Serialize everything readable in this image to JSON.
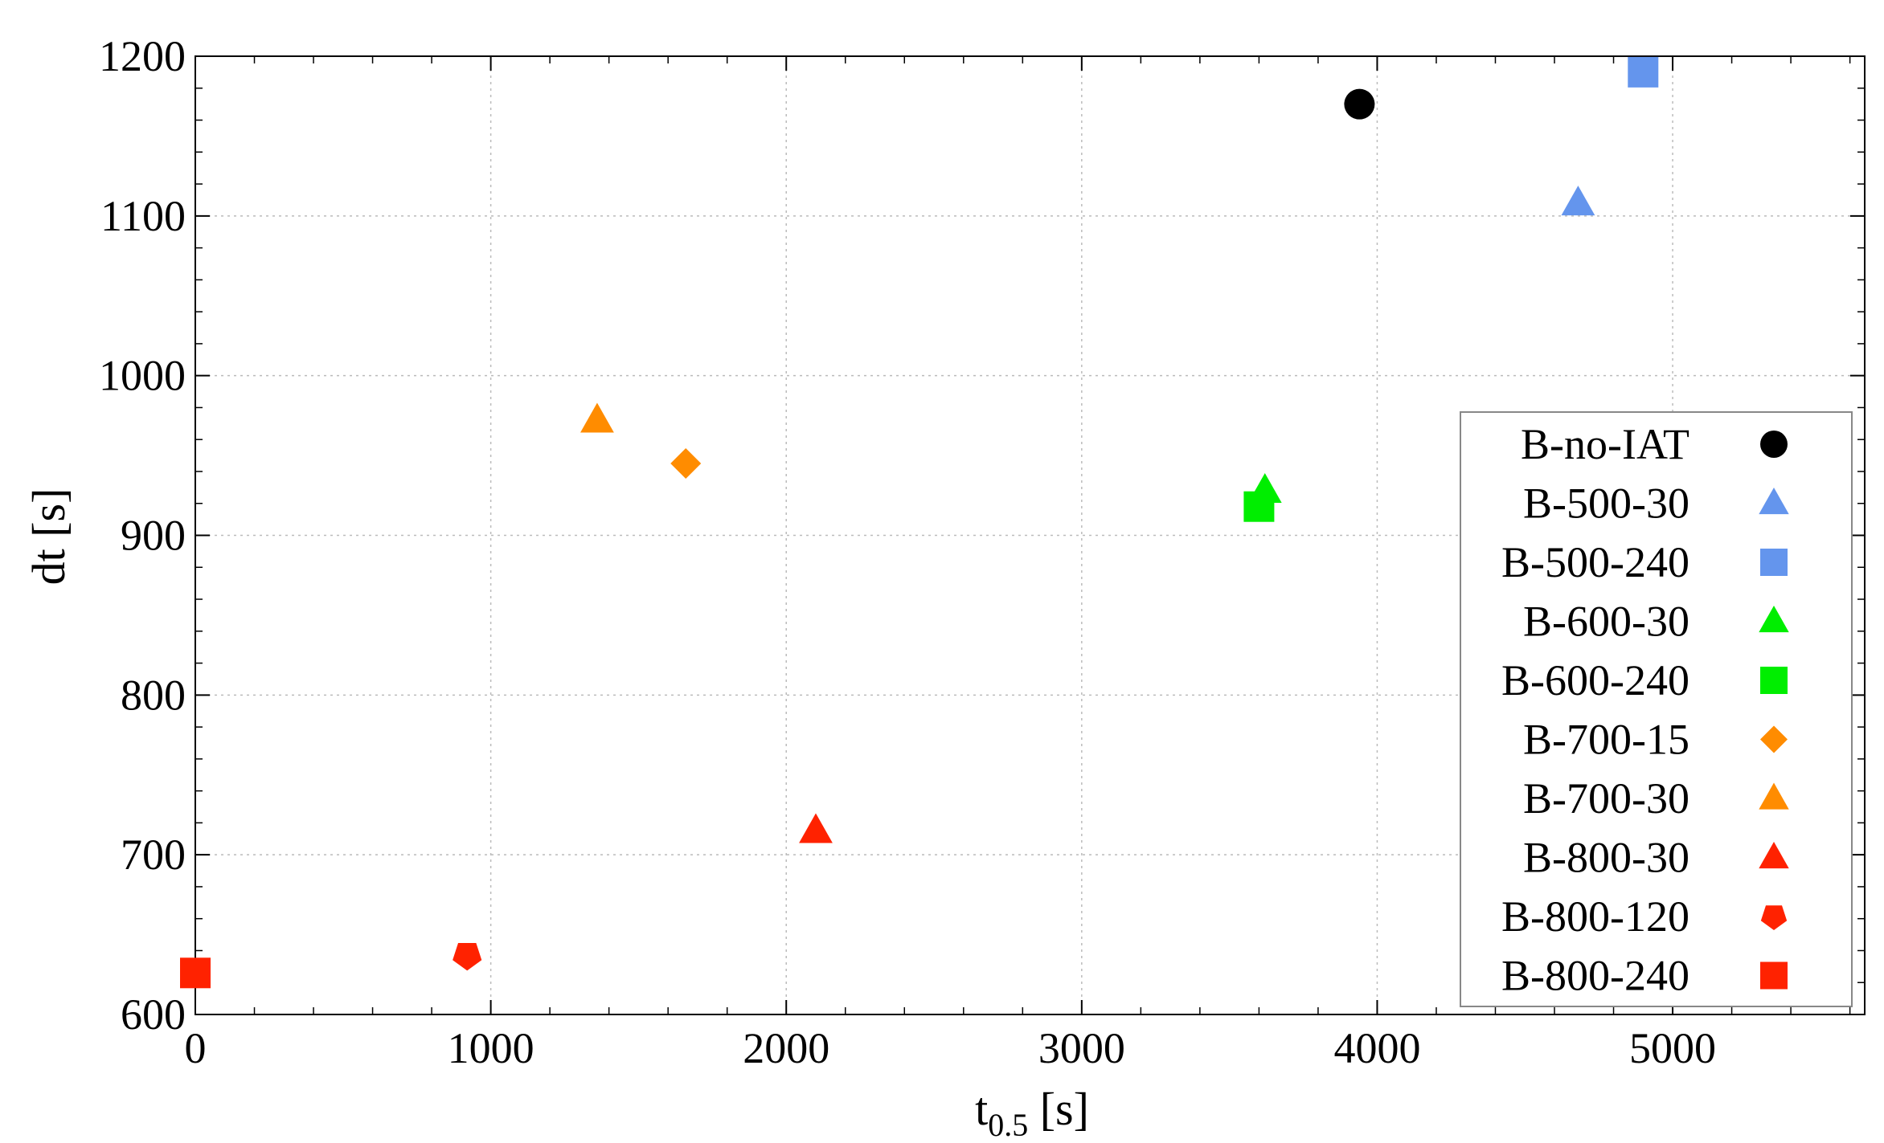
{
  "chart_data": {
    "type": "scatter",
    "xlabel": "t",
    "xlabel_sub": "0.5",
    "xlabel_unit": " [s]",
    "ylabel": "dt [s]",
    "xlim": [
      0,
      5650
    ],
    "ylim": [
      600,
      1200
    ],
    "x_ticks": [
      0,
      1000,
      2000,
      3000,
      4000,
      5000
    ],
    "y_ticks": [
      600,
      700,
      800,
      900,
      1000,
      1100,
      1200
    ],
    "grid": true,
    "legend_position": "right",
    "series": [
      {
        "name": "B-no-IAT",
        "marker": "circle",
        "color": "#000000",
        "points": [
          [
            3940,
            1170
          ]
        ]
      },
      {
        "name": "B-500-30",
        "marker": "triangle",
        "color": "#6495ED",
        "points": [
          [
            4680,
            1108
          ]
        ]
      },
      {
        "name": "B-500-240",
        "marker": "square",
        "color": "#6495ED",
        "points": [
          [
            4900,
            1190
          ]
        ]
      },
      {
        "name": "B-600-30",
        "marker": "triangle",
        "color": "#00EE00",
        "points": [
          [
            3620,
            928
          ]
        ]
      },
      {
        "name": "B-600-240",
        "marker": "square",
        "color": "#00EE00",
        "points": [
          [
            3600,
            918
          ]
        ]
      },
      {
        "name": "B-700-15",
        "marker": "diamond",
        "color": "#FF8C00",
        "points": [
          [
            1660,
            945
          ]
        ]
      },
      {
        "name": "B-700-30",
        "marker": "triangle",
        "color": "#FF8C00",
        "points": [
          [
            1360,
            972
          ]
        ]
      },
      {
        "name": "B-800-30",
        "marker": "triangle",
        "color": "#FF2200",
        "points": [
          [
            2100,
            715
          ]
        ]
      },
      {
        "name": "B-800-120",
        "marker": "pentagon",
        "color": "#FF2200",
        "points": [
          [
            920,
            637
          ]
        ]
      },
      {
        "name": "B-800-240",
        "marker": "square",
        "color": "#FF2200",
        "points": [
          [
            0,
            626
          ]
        ]
      }
    ]
  }
}
